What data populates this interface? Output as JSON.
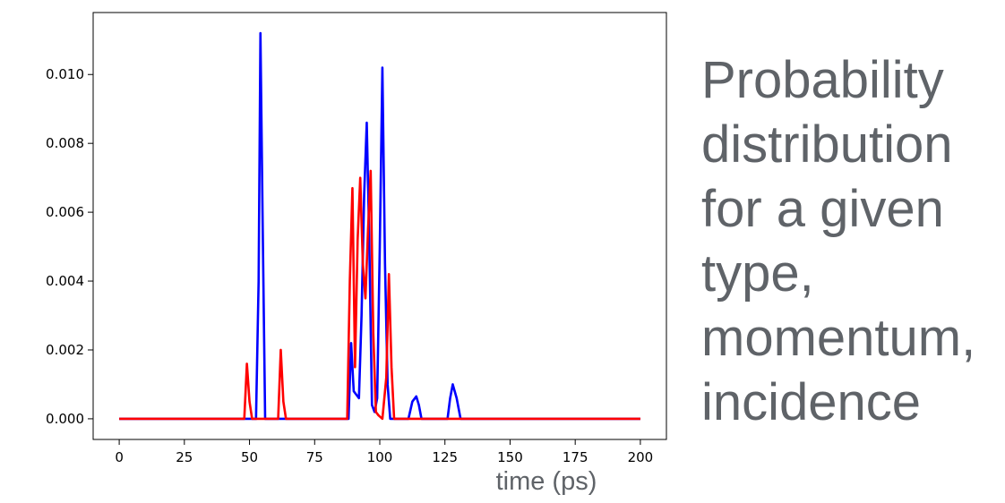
{
  "side_text": {
    "lines": [
      "Probability",
      "distribution",
      "for a given",
      "type,",
      "momentum,",
      "incidence"
    ]
  },
  "chart_data": {
    "type": "line",
    "title": "",
    "xlabel": "time (ps)",
    "ylabel": "",
    "xlim": [
      -10,
      210
    ],
    "ylim": [
      -0.0006,
      0.0118
    ],
    "grid": false,
    "legend": "none",
    "x_ticks": [
      0,
      25,
      50,
      75,
      100,
      125,
      150,
      175,
      200
    ],
    "x_tick_labels": [
      "0",
      "25",
      "50",
      "75",
      "100",
      "125",
      "150",
      "175",
      "200"
    ],
    "y_ticks": [
      0.0,
      0.002,
      0.004,
      0.006,
      0.008,
      0.01
    ],
    "y_tick_labels": [
      "0.000",
      "0.002",
      "0.004",
      "0.006",
      "0.008",
      "0.010"
    ],
    "series": [
      {
        "color": "#0000ff",
        "points": [
          [
            0,
            0
          ],
          [
            52.5,
            0
          ],
          [
            53.5,
            0.004
          ],
          [
            54.2,
            0.0112
          ],
          [
            55,
            0.006
          ],
          [
            56,
            0
          ],
          [
            88,
            0
          ],
          [
            89,
            0.0022
          ],
          [
            90,
            0.0008
          ],
          [
            91,
            0.0007
          ],
          [
            92,
            0.0006
          ],
          [
            93,
            0.003
          ],
          [
            94,
            0.0065
          ],
          [
            95,
            0.0086
          ],
          [
            96,
            0.005
          ],
          [
            97,
            0.0004
          ],
          [
            98,
            0.0002
          ],
          [
            99,
            0.0006
          ],
          [
            100,
            0.005
          ],
          [
            101,
            0.0102
          ],
          [
            102,
            0.0045
          ],
          [
            103,
            0.001
          ],
          [
            104,
            0
          ],
          [
            111,
            0
          ],
          [
            112.5,
            0.0005
          ],
          [
            114,
            0.00065
          ],
          [
            115,
            0.0004
          ],
          [
            116,
            0
          ],
          [
            126,
            0
          ],
          [
            127,
            0.0006
          ],
          [
            128,
            0.001
          ],
          [
            129.5,
            0.0006
          ],
          [
            131,
            0
          ],
          [
            200,
            0
          ]
        ]
      },
      {
        "color": "#ff0000",
        "points": [
          [
            0,
            0
          ],
          [
            48,
            0
          ],
          [
            49,
            0.0016
          ],
          [
            50,
            0.0005
          ],
          [
            51,
            0
          ],
          [
            61,
            0
          ],
          [
            62,
            0.002
          ],
          [
            63,
            0.0005
          ],
          [
            64,
            0
          ],
          [
            87.5,
            0
          ],
          [
            88.5,
            0.004
          ],
          [
            89.5,
            0.0067
          ],
          [
            90.5,
            0.0015
          ],
          [
            91.5,
            0.0052
          ],
          [
            92.5,
            0.007
          ],
          [
            93.5,
            0.0045
          ],
          [
            94.5,
            0.0035
          ],
          [
            95.5,
            0.0055
          ],
          [
            96.5,
            0.0072
          ],
          [
            97.5,
            0.0025
          ],
          [
            98.5,
            0.0002
          ],
          [
            99.5,
            0.0001
          ],
          [
            101,
            0
          ],
          [
            102.5,
            0.0012
          ],
          [
            103.5,
            0.0042
          ],
          [
            104.5,
            0.0015
          ],
          [
            105.5,
            0
          ],
          [
            200,
            0
          ]
        ]
      }
    ]
  }
}
